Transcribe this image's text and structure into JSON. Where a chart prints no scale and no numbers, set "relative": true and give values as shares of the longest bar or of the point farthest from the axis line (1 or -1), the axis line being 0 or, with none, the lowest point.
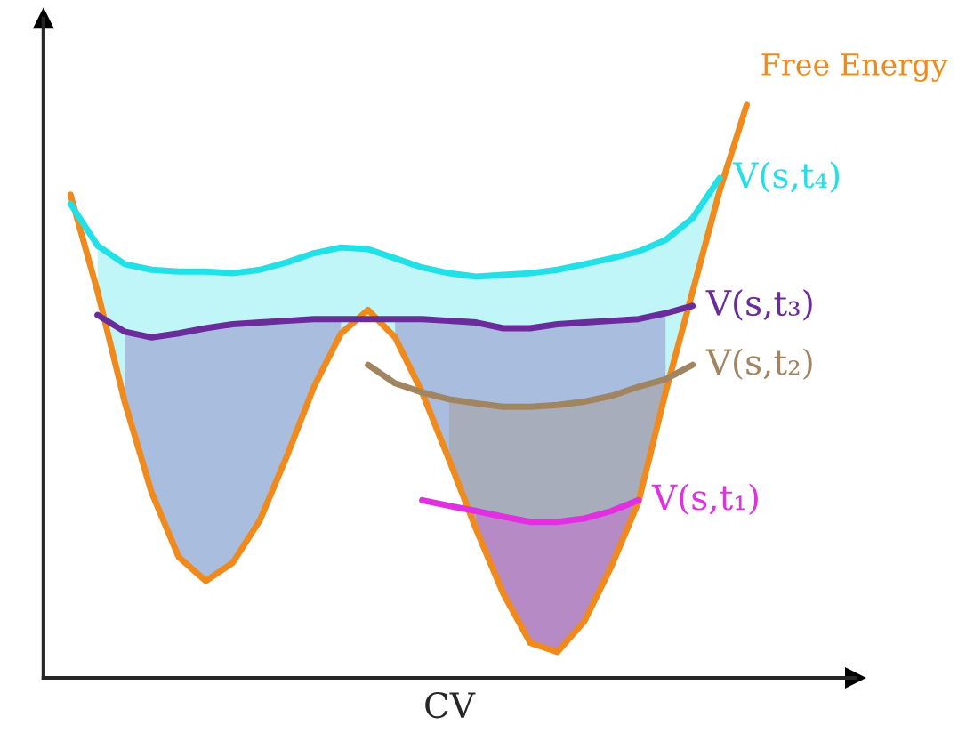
{
  "chart_data": {
    "type": "line",
    "relative": true,
    "xlabel": "CV",
    "legend": false,
    "grid": false,
    "categories": [
      null,
      null,
      null,
      null,
      null,
      null,
      null,
      null,
      null,
      null,
      null,
      null,
      null,
      null,
      null,
      null,
      null,
      null,
      null,
      null,
      null,
      null,
      null,
      null,
      null,
      null
    ],
    "series": [
      {
        "name": "Free Energy",
        "color": "#f08a1c",
        "values": [
          0.843,
          0.674,
          0.482,
          0.323,
          0.211,
          0.169,
          0.201,
          0.275,
          0.387,
          0.508,
          0.601,
          0.642,
          0.594,
          0.498,
          0.38,
          0.259,
          0.147,
          0.061,
          0.045,
          0.099,
          0.195,
          0.307,
          0.498,
          0.674,
          0.85,
          1
        ]
      },
      {
        "name": "V(s,t₄)",
        "color": "#22e0e8",
        "values": [
          0.827,
          0.754,
          0.722,
          0.712,
          0.709,
          0.709,
          0.706,
          0.712,
          0.725,
          0.741,
          0.751,
          0.748,
          0.732,
          0.716,
          0.706,
          0.7,
          0.703,
          0.706,
          0.712,
          0.722,
          0.732,
          0.744,
          0.764,
          0.802,
          0.872,
          null
        ],
        "lower": [
          null,
          0.674,
          0.482,
          0.323,
          0.211,
          0.169,
          0.201,
          0.275,
          0.387,
          0.508,
          0.601,
          0.642,
          0.594,
          0.498,
          0.38,
          0.259,
          0.147,
          0.061,
          0.045,
          0.099,
          0.195,
          0.307,
          0.498,
          0.674,
          0.85,
          null
        ],
        "upper": [
          null,
          0.754,
          0.722,
          0.712,
          0.709,
          0.709,
          0.706,
          0.712,
          0.725,
          0.741,
          0.751,
          0.748,
          0.732,
          0.716,
          0.706,
          0.7,
          0.703,
          0.706,
          0.712,
          0.722,
          0.732,
          0.744,
          0.764,
          0.802,
          0.872,
          null
        ]
      },
      {
        "name": "V(s,t₃)",
        "color": "#6a2c9a",
        "values": [
          null,
          0.633,
          0.604,
          0.594,
          0.601,
          0.61,
          0.617,
          0.62,
          0.623,
          0.626,
          0.626,
          0.626,
          0.626,
          0.626,
          0.623,
          0.62,
          0.61,
          0.61,
          0.617,
          0.62,
          0.623,
          0.626,
          0.636,
          0.649,
          null,
          null
        ],
        "lower": [
          null,
          null,
          0.482,
          0.323,
          0.211,
          0.169,
          0.201,
          0.275,
          0.387,
          0.508,
          0.601,
          null,
          0.594,
          0.498,
          0.38,
          0.259,
          0.147,
          0.061,
          0.045,
          0.099,
          0.195,
          0.307,
          0.498,
          null,
          null,
          null
        ],
        "upper": [
          null,
          null,
          0.604,
          0.594,
          0.601,
          0.61,
          0.617,
          0.62,
          0.623,
          0.626,
          0.626,
          null,
          0.626,
          0.626,
          0.623,
          0.62,
          0.61,
          0.61,
          0.617,
          0.62,
          0.623,
          0.626,
          0.636,
          null,
          null,
          null
        ]
      },
      {
        "name": "V(s,t₂)",
        "color": "#a08560",
        "values": [
          null,
          null,
          null,
          null,
          null,
          null,
          null,
          null,
          null,
          null,
          null,
          0.546,
          0.514,
          0.498,
          0.486,
          0.479,
          0.473,
          0.473,
          0.476,
          0.482,
          0.492,
          0.508,
          0.521,
          0.546,
          null,
          null
        ],
        "lower": [
          null,
          null,
          null,
          null,
          null,
          null,
          null,
          null,
          null,
          null,
          null,
          null,
          null,
          null,
          0.38,
          0.259,
          0.147,
          0.061,
          0.045,
          0.099,
          0.195,
          0.307,
          0.498,
          null,
          null,
          null
        ],
        "upper": [
          null,
          null,
          null,
          null,
          null,
          null,
          null,
          null,
          null,
          null,
          null,
          null,
          null,
          null,
          0.486,
          0.479,
          0.473,
          0.473,
          0.476,
          0.482,
          0.492,
          0.508,
          0.521,
          null,
          null,
          null
        ]
      },
      {
        "name": "V(s,t₁)",
        "color": "#e030e0",
        "values": [
          null,
          null,
          null,
          null,
          null,
          null,
          null,
          null,
          null,
          null,
          null,
          null,
          null,
          0.31,
          0.3,
          0.291,
          0.281,
          0.272,
          0.272,
          0.278,
          0.291,
          0.31,
          null,
          null,
          null,
          null
        ],
        "lower": [
          null,
          null,
          null,
          null,
          null,
          null,
          null,
          null,
          null,
          null,
          null,
          null,
          null,
          null,
          null,
          0.259,
          0.147,
          0.061,
          0.045,
          0.099,
          0.195,
          0.307,
          null,
          null,
          null,
          null
        ],
        "upper": [
          null,
          null,
          null,
          null,
          null,
          null,
          null,
          null,
          null,
          null,
          null,
          null,
          null,
          null,
          null,
          0.291,
          0.281,
          0.272,
          0.272,
          0.278,
          0.291,
          0.31,
          null,
          null,
          null,
          null
        ]
      }
    ]
  }
}
